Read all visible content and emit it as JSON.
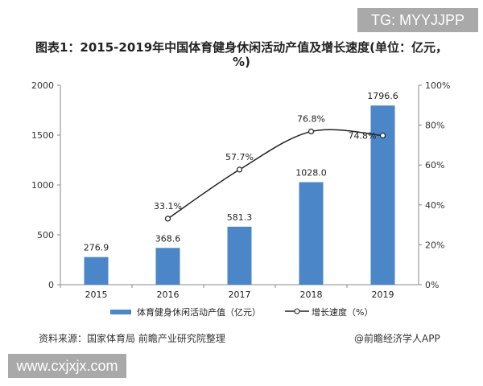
{
  "watermark_top": "TG: MYYJJPP",
  "watermark_bottom": "www.cxjxjx.com",
  "source": "资料来源：国家体育局 前瞻产业研究院整理",
  "credit": "@前瞻经济学人APP",
  "chart_data": {
    "type": "bar+line",
    "title": "图表1：2015-2019年中国体育健身休闲活动产值及增长速度(单位：亿元，%)",
    "categories": [
      "2015",
      "2016",
      "2017",
      "2018",
      "2019"
    ],
    "series": [
      {
        "name": "体育健身休闲活动产值（亿元）",
        "type": "bar",
        "axis": "left",
        "color": "#4a86c8",
        "values": [
          276.9,
          368.6,
          581.3,
          1028.0,
          1796.6
        ],
        "labels": [
          "276.9",
          "368.6",
          "581.3",
          "1028.0",
          "1796.6"
        ]
      },
      {
        "name": "增长速度（%）",
        "type": "line",
        "axis": "right",
        "color": "#222222",
        "values": [
          null,
          33.1,
          57.7,
          76.8,
          74.8
        ],
        "labels": [
          "",
          "33.1%",
          "57.7%",
          "76.8%",
          "74.8%"
        ]
      }
    ],
    "left_axis": {
      "ylim": [
        0,
        2000
      ],
      "ticks": [
        "0",
        "500",
        "1000",
        "1500",
        "2000"
      ]
    },
    "right_axis": {
      "ylim": [
        0,
        100
      ],
      "ticks": [
        "0%",
        "20%",
        "40%",
        "60%",
        "80%",
        "100%"
      ]
    },
    "grid": false,
    "legend": "bottom"
  }
}
